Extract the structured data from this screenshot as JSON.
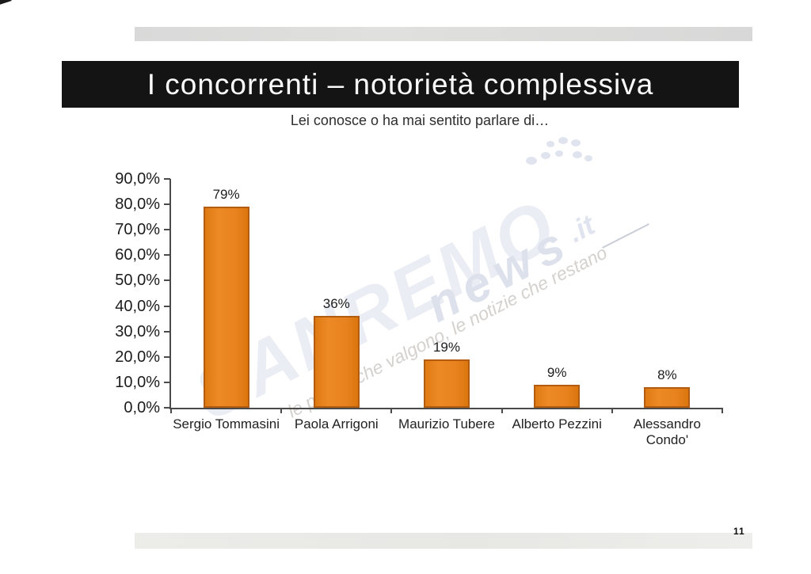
{
  "page": {
    "page_number": "11"
  },
  "header": {
    "title": "I concorrenti – notorietà complessiva",
    "subtitle": "Lei conosce o ha mai sentito parlare di…"
  },
  "watermark": {
    "brand": "SANREMO",
    "brand2": "news",
    "domain": ".it",
    "slogan": "le parole che valgono, le notizie che restano"
  },
  "chart_data": {
    "type": "bar",
    "title": "I concorrenti – notorietà complessiva",
    "subtitle": "Lei conosce o ha mai sentito parlare di…",
    "categories": [
      "Sergio Tommasini",
      "Paola Arrigoni",
      "Maurizio Tubere",
      "Alberto Pezzini",
      "Alessandro Condo'"
    ],
    "category_lines": [
      [
        "Sergio Tommasini"
      ],
      [
        "Paola Arrigoni"
      ],
      [
        "Maurizio Tubere"
      ],
      [
        "Alberto Pezzini"
      ],
      [
        "Alessandro",
        "Condo'"
      ]
    ],
    "values": [
      79,
      36,
      19,
      9,
      8
    ],
    "value_labels": [
      "79%",
      "36%",
      "19%",
      "9%",
      "8%"
    ],
    "y_tick_labels": [
      "90,0%",
      "80,0%",
      "70,0%",
      "60,0%",
      "50,0%",
      "40,0%",
      "30,0%",
      "20,0%",
      "10,0%",
      "0,0%"
    ],
    "ylim": [
      0,
      90
    ],
    "y_tick_step": 10,
    "xlabel": "",
    "ylabel": "",
    "grid": false,
    "legend": "none",
    "bar_color": "#e8831f",
    "bar_border_color": "#b35c10"
  }
}
